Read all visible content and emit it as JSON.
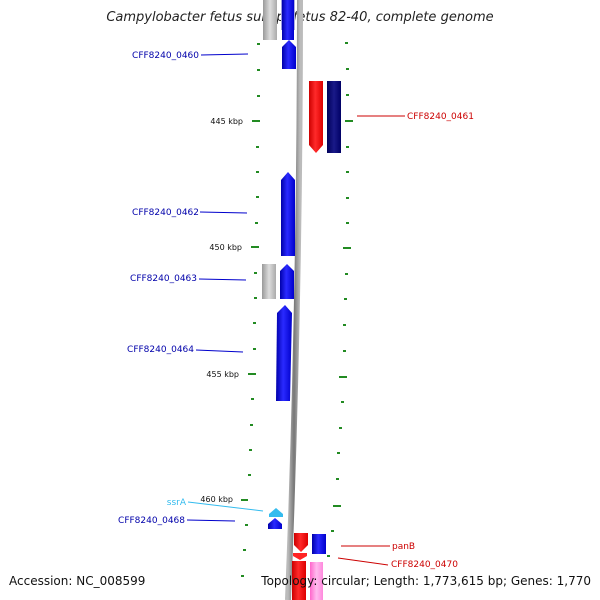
{
  "title": "Campylobacter fetus subsp. fetus 82-40, complete genome",
  "footer": {
    "accession_label": "Accession:",
    "accession": "NC_008599",
    "topology_label": "Topology:",
    "topology": "circular",
    "length_label": "Length:",
    "length": "1,773,615 bp",
    "genes_label": "Genes:",
    "genes": "1,770"
  },
  "scale_labels": [
    {
      "value_kbp": 445,
      "label": "445 kbp"
    },
    {
      "value_kbp": 450,
      "label": "450 kbp"
    },
    {
      "value_kbp": 455,
      "label": "455 kbp"
    },
    {
      "value_kbp": 460,
      "label": "460 kbp"
    }
  ],
  "genes": [
    {
      "id": "CFF8240_0460",
      "label": "CFF8240_0460",
      "strand": "+",
      "type": "CDS"
    },
    {
      "id": "CFF8240_0461",
      "label": "CFF8240_0461",
      "strand": "-",
      "type": "CDS"
    },
    {
      "id": "CFF8240_0462",
      "label": "CFF8240_0462",
      "strand": "+",
      "type": "CDS"
    },
    {
      "id": "CFF8240_0463",
      "label": "CFF8240_0463",
      "strand": "+",
      "type": "CDS"
    },
    {
      "id": "CFF8240_0464",
      "label": "CFF8240_0464",
      "strand": "+",
      "type": "CDS"
    },
    {
      "id": "ssrA",
      "label": "ssrA",
      "strand": "+",
      "type": "tmRNA"
    },
    {
      "id": "CFF8240_0468",
      "label": "CFF8240_0468",
      "strand": "+",
      "type": "CDS"
    },
    {
      "id": "panB",
      "label": "panB",
      "strand": "-",
      "type": "CDS"
    },
    {
      "id": "CFF8240_0470",
      "label": "CFF8240_0470",
      "strand": "-",
      "type": "CDS"
    }
  ],
  "colors": {
    "forward_cds": "#0000ff",
    "reverse_cds": "#ff0000",
    "reverse_cds_dark": "#000080",
    "rna": "#33bbee",
    "ssrA_label": "#33bbee",
    "forward_label": "#0000aa",
    "reverse_label": "#cc0000",
    "backbone": "#888888",
    "tick": "#228b22",
    "pink": "#ff66cc"
  }
}
